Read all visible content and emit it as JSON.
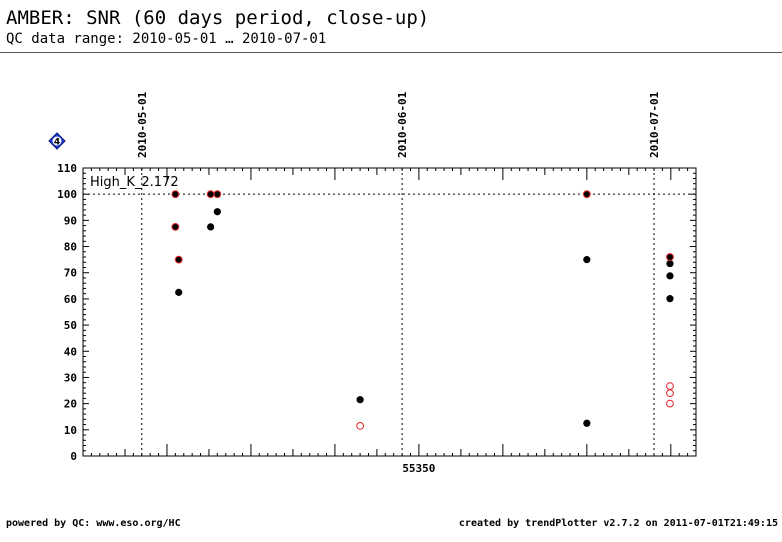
{
  "header": {
    "title": "AMBER: SNR (60 days period, close-up)",
    "subtitle": "QC data range: 2010-05-01 … 2010-07-01"
  },
  "chart_data": {
    "type": "scatter",
    "panel_label": "High_K_2.172",
    "badge": "4",
    "xlim": [
      55310,
      55383
    ],
    "ylim": [
      0,
      110
    ],
    "yticks": [
      0,
      10,
      20,
      30,
      40,
      50,
      60,
      70,
      80,
      90,
      100,
      110
    ],
    "xtick_major": 55350,
    "date_markers": [
      {
        "x": 55317,
        "label": "2010-05-01"
      },
      {
        "x": 55348,
        "label": "2010-06-01"
      },
      {
        "x": 55378,
        "label": "2010-07-01"
      }
    ],
    "reference_line_y": 100,
    "series": [
      {
        "style": "filled-black",
        "points": [
          [
            55321.0,
            100
          ],
          [
            55321.0,
            87.5
          ],
          [
            55321.4,
            75
          ],
          [
            55321.4,
            62.5
          ],
          [
            55325.2,
            100
          ],
          [
            55325.2,
            87.5
          ],
          [
            55326.0,
            100
          ],
          [
            55326.0,
            93.3
          ],
          [
            55343.0,
            21.5
          ],
          [
            55370.0,
            100
          ],
          [
            55370.0,
            75
          ],
          [
            55370.0,
            12.5
          ],
          [
            55379.9,
            76.0
          ],
          [
            55379.9,
            73.5
          ],
          [
            55379.9,
            68.8
          ],
          [
            55379.9,
            60.1
          ]
        ]
      },
      {
        "style": "open-red",
        "points": [
          [
            55321.0,
            100
          ],
          [
            55321.0,
            87.5
          ],
          [
            55321.4,
            75
          ],
          [
            55325.2,
            100
          ],
          [
            55326.0,
            100
          ],
          [
            55343.0,
            11.5
          ],
          [
            55370.0,
            100
          ],
          [
            55379.9,
            76.0
          ],
          [
            55379.9,
            26.7
          ],
          [
            55379.9,
            24.0
          ],
          [
            55379.9,
            20.0
          ]
        ]
      }
    ],
    "colors": {
      "filled": "#000000",
      "open": "#e8262b",
      "badge": "#1f3bd6"
    }
  },
  "footer": {
    "left": "powered by QC: www.eso.org/HC",
    "right": "created by trendPlotter v2.7.2 on 2011-07-01T21:49:15"
  }
}
